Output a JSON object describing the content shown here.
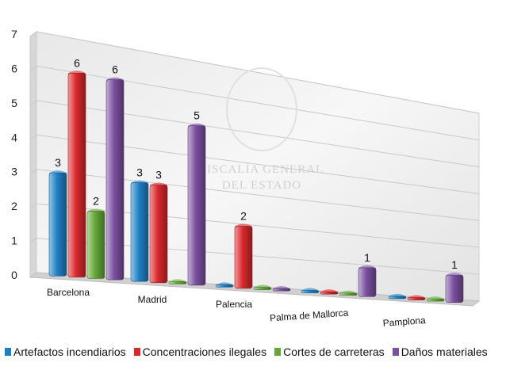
{
  "chart_data": {
    "type": "bar",
    "categories": [
      "Barcelona",
      "Madrid",
      "Palencia",
      "Palma de Mallorca",
      "Pamplona"
    ],
    "series": [
      {
        "name": "Artefactos incendiarios",
        "values": [
          3,
          3,
          0,
          0,
          0
        ],
        "color": "#1f7fc4"
      },
      {
        "name": "Concentraciones ilegales",
        "values": [
          6,
          3,
          2,
          0,
          0
        ],
        "color": "#d8282b"
      },
      {
        "name": "Cortes de carreteras",
        "values": [
          2,
          0,
          0,
          0,
          0
        ],
        "color": "#63a738"
      },
      {
        "name": "Daños materiales",
        "values": [
          6,
          5,
          0,
          1,
          1
        ],
        "color": "#7a4f9e"
      }
    ],
    "data_labels": [
      [
        3,
        6,
        2,
        6
      ],
      [
        3,
        3,
        null,
        5
      ],
      [
        null,
        2,
        null,
        null
      ],
      [
        null,
        null,
        null,
        1
      ],
      [
        null,
        null,
        null,
        1
      ]
    ],
    "yticks": [
      "0",
      "1",
      "2",
      "3",
      "4",
      "5",
      "6",
      "7"
    ],
    "ylim": [
      0,
      7
    ],
    "legend_position": "bottom",
    "grid": true,
    "watermark": [
      "FISCALÍA GENERAL",
      "DEL ESTADO"
    ]
  }
}
